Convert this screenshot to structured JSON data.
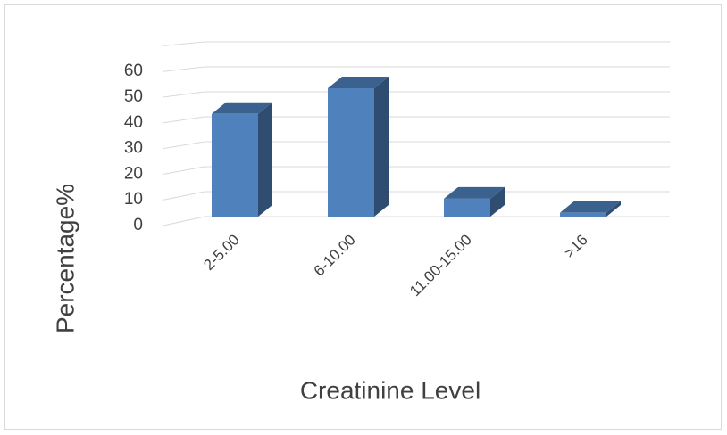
{
  "chart_data": {
    "type": "bar3d",
    "x_label": "Creatinine Level",
    "y_label": "Percentage%",
    "categories": [
      "2-5.00",
      "6-10.00",
      "11.00-15.00",
      ">16"
    ],
    "values": [
      40,
      50,
      7,
      1.5
    ],
    "color": "#4f81bd",
    "ylim": [
      0,
      70
    ],
    "yticks": [
      0,
      10,
      20,
      30,
      40,
      50,
      60
    ],
    "grid": true
  }
}
